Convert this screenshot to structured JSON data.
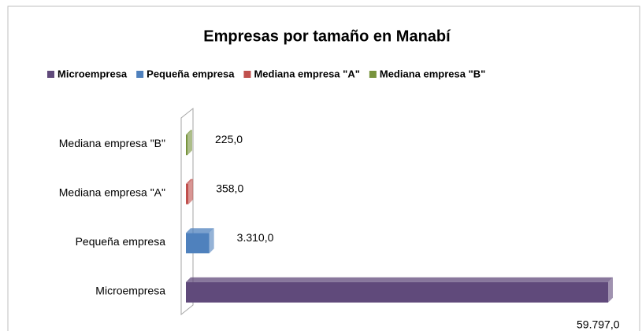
{
  "chart_data": {
    "type": "bar",
    "orientation": "horizontal",
    "three_d": true,
    "title": "Empresas por  tamaño en Manabí",
    "categories": [
      "Microempresa",
      "Pequeña empresa",
      "Mediana empresa \"A\"",
      "Mediana empresa \"B\""
    ],
    "values": [
      59797,
      3310,
      358,
      225
    ],
    "value_labels": [
      "59.797,0",
      "3.310,0",
      "358,0",
      "225,0"
    ],
    "colors": [
      "#604a7b",
      "#4f81bd",
      "#c0504d",
      "#77933c"
    ],
    "legend": "top"
  }
}
